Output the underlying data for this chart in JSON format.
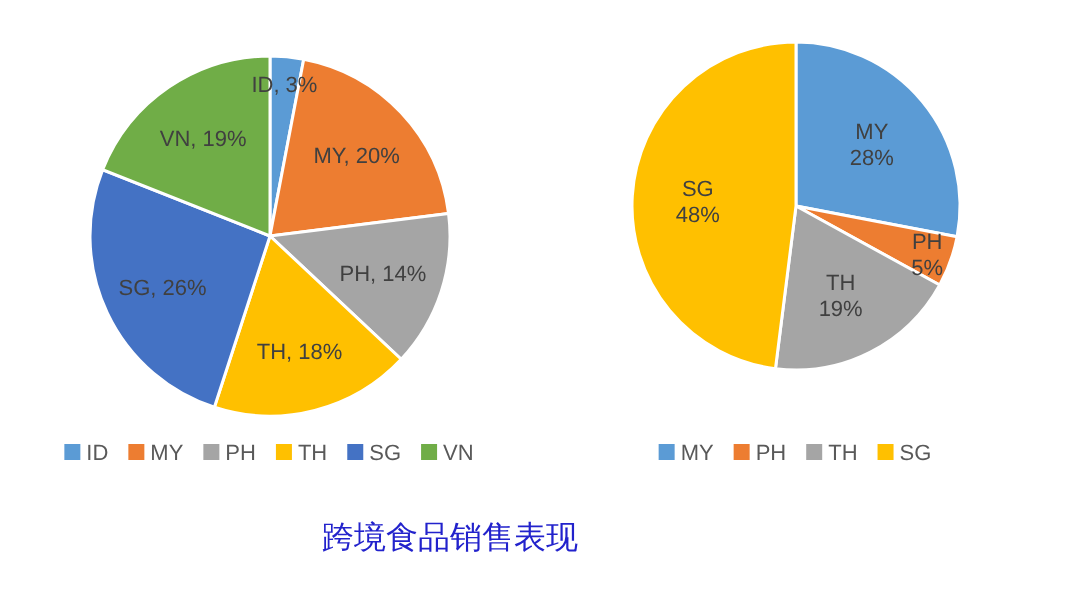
{
  "chart_data": [
    {
      "type": "pie",
      "categories": [
        "ID",
        "MY",
        "PH",
        "TH",
        "SG",
        "VN"
      ],
      "values": [
        3,
        20,
        14,
        18,
        26,
        19
      ],
      "colors": [
        "#5b9bd5",
        "#ed7d31",
        "#a5a5a5",
        "#ffc000",
        "#4472c4",
        "#70ad47"
      ],
      "value_labels": [
        "ID, 3%",
        "MY, 20%",
        "PH, 14%",
        "TH, 18%",
        "SG, 26%",
        "VN, 19%"
      ],
      "legend": "bottom"
    },
    {
      "type": "pie",
      "categories": [
        "MY",
        "PH",
        "TH",
        "SG"
      ],
      "values": [
        28,
        5,
        19,
        48
      ],
      "colors": [
        "#5b9bd5",
        "#ed7d31",
        "#a5a5a5",
        "#ffc000"
      ],
      "value_labels": [
        "MY 28%",
        "PH 5%",
        "TH 19%",
        "SG 48%"
      ],
      "legend": "bottom"
    },
    {
      "type": "other",
      "title": "跨境食品销售表现"
    }
  ]
}
